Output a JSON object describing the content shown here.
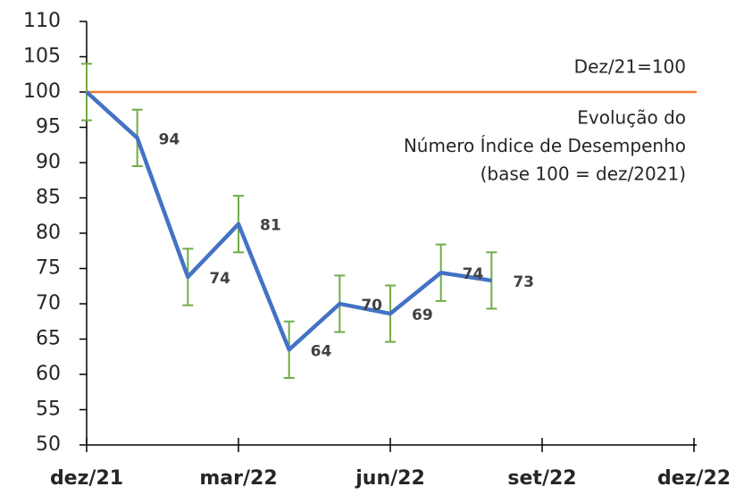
{
  "chart_data": {
    "type": "line",
    "x": [
      0,
      1,
      2,
      3,
      4,
      5,
      6,
      7,
      8
    ],
    "values": [
      100,
      93.5,
      73.8,
      81.3,
      63.5,
      70,
      68.6,
      74.4,
      73.3
    ],
    "value_labels": [
      null,
      "94",
      "74",
      "81",
      "64",
      "70",
      "69",
      "74",
      "73"
    ],
    "errors": [
      4,
      4,
      4,
      4,
      4,
      4,
      4,
      4,
      4
    ],
    "color": "#4472c4",
    "error_color": "#70ad47",
    "xlim": [
      0,
      12
    ],
    "xticks": [
      {
        "value": 0,
        "label": "dez/21"
      },
      {
        "value": 3,
        "label": "mar/22"
      },
      {
        "value": 6,
        "label": "jun/22"
      },
      {
        "value": 9,
        "label": "set/22"
      },
      {
        "value": 12,
        "label": "dez/22"
      }
    ],
    "ylim": [
      50,
      110
    ],
    "yticks": [
      50,
      55,
      60,
      65,
      70,
      75,
      80,
      85,
      90,
      95,
      100,
      105,
      110
    ],
    "reference_line": {
      "value": 100,
      "label": "Dez/21=100",
      "color": "#ed7d31"
    },
    "annotation": [
      "Evolução do",
      "Número Índice de Desempenho",
      "(base 100 = dez/2021)"
    ]
  }
}
